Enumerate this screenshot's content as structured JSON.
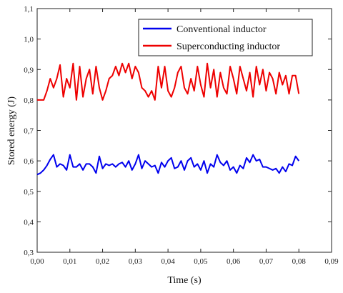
{
  "chart_data": {
    "type": "line",
    "title": "",
    "xlabel": "Time (s)",
    "ylabel": "Stored energy  (J)",
    "xlim": [
      0.0,
      0.09
    ],
    "ylim": [
      0.3,
      1.1
    ],
    "x_ticks": [
      "0,00",
      "0,01",
      "0,02",
      "0,03",
      "0,04",
      "0,05",
      "0,06",
      "0,07",
      "0,08",
      "0,09"
    ],
    "y_ticks": [
      "0,3",
      "0,4",
      "0,5",
      "0,6",
      "0,7",
      "0,8",
      "0,9",
      "1,0",
      "1,1"
    ],
    "grid": false,
    "legend_position": "top-right",
    "x": [
      0.0,
      0.001,
      0.002,
      0.003,
      0.004,
      0.005,
      0.006,
      0.007,
      0.008,
      0.009,
      0.01,
      0.011,
      0.012,
      0.013,
      0.014,
      0.015,
      0.016,
      0.017,
      0.018,
      0.019,
      0.02,
      0.021,
      0.022,
      0.023,
      0.024,
      0.025,
      0.026,
      0.027,
      0.028,
      0.029,
      0.03,
      0.031,
      0.032,
      0.033,
      0.034,
      0.035,
      0.036,
      0.037,
      0.038,
      0.039,
      0.04,
      0.041,
      0.042,
      0.043,
      0.044,
      0.045,
      0.046,
      0.047,
      0.048,
      0.049,
      0.05,
      0.051,
      0.052,
      0.053,
      0.054,
      0.055,
      0.056,
      0.057,
      0.058,
      0.059,
      0.06,
      0.061,
      0.062,
      0.063,
      0.064,
      0.065,
      0.066,
      0.067,
      0.068,
      0.069,
      0.07,
      0.071,
      0.072,
      0.073,
      0.074,
      0.075,
      0.076,
      0.077,
      0.078,
      0.079,
      0.08
    ],
    "series": [
      {
        "name": "Conventional inductor",
        "color": "#0000ee",
        "values": [
          0.555,
          0.56,
          0.57,
          0.585,
          0.605,
          0.62,
          0.58,
          0.59,
          0.585,
          0.57,
          0.62,
          0.58,
          0.58,
          0.59,
          0.57,
          0.59,
          0.59,
          0.58,
          0.56,
          0.615,
          0.575,
          0.59,
          0.585,
          0.59,
          0.58,
          0.59,
          0.595,
          0.58,
          0.6,
          0.57,
          0.59,
          0.62,
          0.575,
          0.6,
          0.59,
          0.58,
          0.585,
          0.56,
          0.595,
          0.58,
          0.6,
          0.61,
          0.575,
          0.58,
          0.6,
          0.57,
          0.6,
          0.61,
          0.58,
          0.59,
          0.57,
          0.6,
          0.56,
          0.59,
          0.58,
          0.62,
          0.595,
          0.585,
          0.6,
          0.57,
          0.58,
          0.56,
          0.585,
          0.575,
          0.61,
          0.595,
          0.62,
          0.6,
          0.605,
          0.58,
          0.58,
          0.575,
          0.57,
          0.575,
          0.56,
          0.58,
          0.565,
          0.59,
          0.585,
          0.615,
          0.6
        ]
      },
      {
        "name": "Superconducting inductor",
        "color": "#ee0000",
        "values": [
          0.8,
          0.8,
          0.8,
          0.83,
          0.87,
          0.84,
          0.87,
          0.915,
          0.81,
          0.87,
          0.84,
          0.92,
          0.8,
          0.91,
          0.81,
          0.87,
          0.9,
          0.82,
          0.91,
          0.84,
          0.8,
          0.83,
          0.87,
          0.88,
          0.91,
          0.88,
          0.92,
          0.89,
          0.92,
          0.87,
          0.91,
          0.89,
          0.84,
          0.83,
          0.81,
          0.83,
          0.8,
          0.91,
          0.84,
          0.91,
          0.83,
          0.81,
          0.84,
          0.89,
          0.91,
          0.84,
          0.82,
          0.87,
          0.83,
          0.91,
          0.85,
          0.81,
          0.92,
          0.84,
          0.9,
          0.81,
          0.89,
          0.84,
          0.82,
          0.91,
          0.87,
          0.82,
          0.91,
          0.87,
          0.83,
          0.89,
          0.81,
          0.91,
          0.85,
          0.9,
          0.83,
          0.89,
          0.87,
          0.82,
          0.89,
          0.85,
          0.88,
          0.82,
          0.88,
          0.88,
          0.82
        ]
      }
    ]
  }
}
